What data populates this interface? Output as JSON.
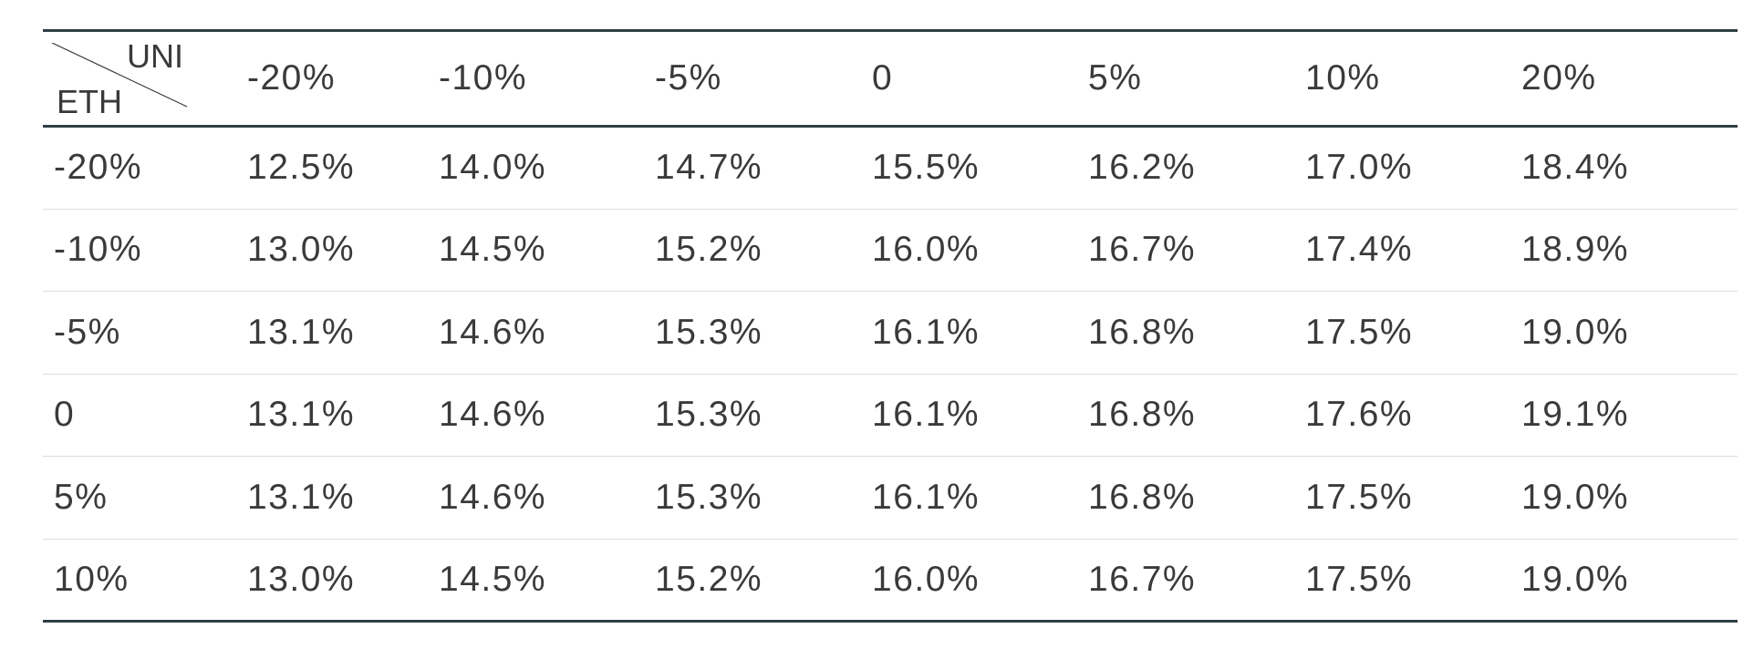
{
  "table": {
    "corner": {
      "column_axis_label": "UNI",
      "row_axis_label": "ETH"
    },
    "column_headers": [
      "-20%",
      "-10%",
      "-5%",
      "0",
      "5%",
      "10%",
      "20%"
    ],
    "rows": [
      {
        "label": "-20%",
        "cells": [
          "12.5%",
          "14.0%",
          "14.7%",
          "15.5%",
          "16.2%",
          "17.0%",
          "18.4%"
        ]
      },
      {
        "label": "-10%",
        "cells": [
          "13.0%",
          "14.5%",
          "15.2%",
          "16.0%",
          "16.7%",
          "17.4%",
          "18.9%"
        ]
      },
      {
        "label": "-5%",
        "cells": [
          "13.1%",
          "14.6%",
          "15.3%",
          "16.1%",
          "16.8%",
          "17.5%",
          "19.0%"
        ]
      },
      {
        "label": "0",
        "cells": [
          "13.1%",
          "14.6%",
          "15.3%",
          "16.1%",
          "16.8%",
          "17.6%",
          "19.1%"
        ]
      },
      {
        "label": "5%",
        "cells": [
          "13.1%",
          "14.6%",
          "15.3%",
          "16.1%",
          "16.8%",
          "17.5%",
          "19.0%"
        ]
      },
      {
        "label": "10%",
        "cells": [
          "13.0%",
          "14.5%",
          "15.2%",
          "16.0%",
          "16.7%",
          "17.5%",
          "19.0%"
        ]
      }
    ]
  },
  "colors": {
    "rule": "#2f3e46",
    "row_divider": "#dddddd",
    "text": "#3a3a3a"
  }
}
